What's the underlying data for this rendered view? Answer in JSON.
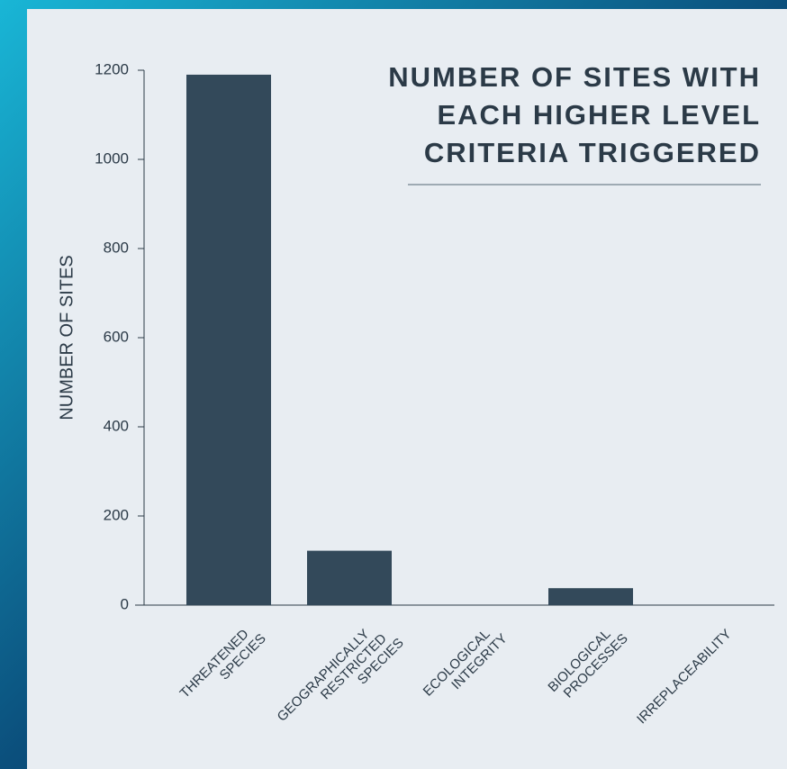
{
  "chart_data": {
    "type": "bar",
    "title": [
      "NUMBER OF SITES WITH",
      "EACH HIGHER LEVEL",
      "CRITERIA TRIGGERED"
    ],
    "y_label": "NUMBER OF SITES",
    "categories": [
      "THREATENED SPECIES",
      "GEOGRAPHICALLY RESTRICTED SPECIES",
      "ECOLOGICAL INTEGRITY",
      "BIOLOGICAL PROCESSES",
      "IRREPLACEABILITY"
    ],
    "values": [
      1190,
      122,
      0,
      38,
      0
    ],
    "color": "#33495a",
    "ylim": [
      0,
      1200
    ],
    "yticks": [
      0,
      200,
      400,
      600,
      800,
      1000,
      1200
    ],
    "grid": false
  }
}
